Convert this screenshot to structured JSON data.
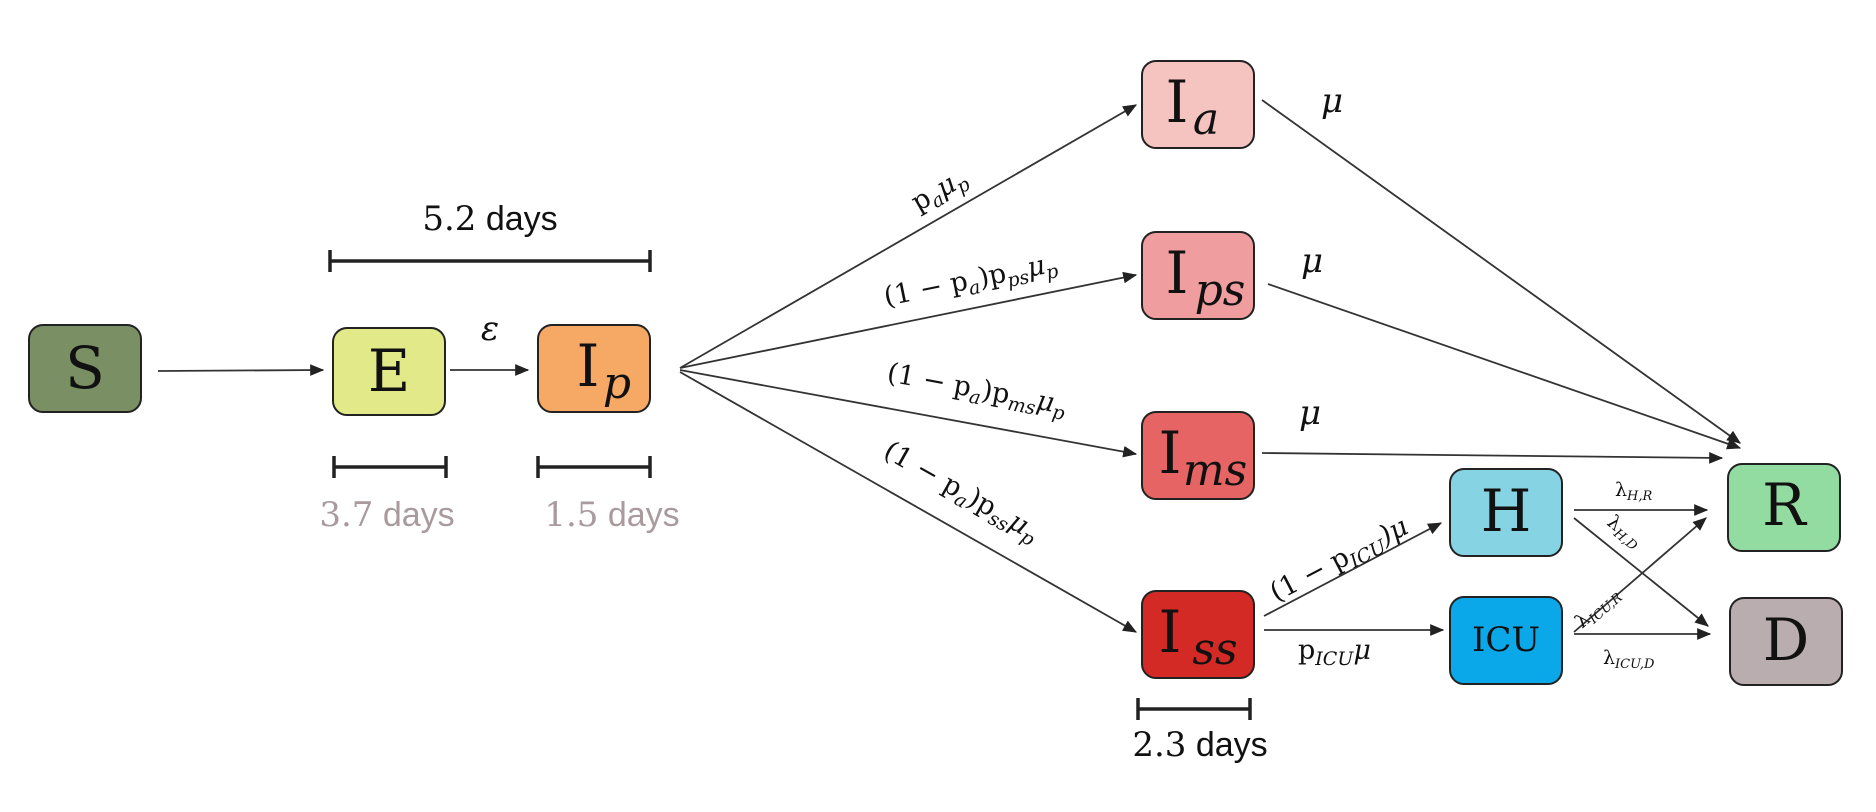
{
  "nodes": {
    "S": {
      "label": "S",
      "sub": "",
      "color": "#7a8f63"
    },
    "E": {
      "label": "E",
      "sub": "",
      "color": "#e2e989"
    },
    "Ip": {
      "label": "I",
      "sub": "p",
      "color": "#f5a965"
    },
    "Ia": {
      "label": "I",
      "sub": "a",
      "color": "#f5c3c0"
    },
    "Ips": {
      "label": "I",
      "sub": "ps",
      "color": "#ef9d9f"
    },
    "Ims": {
      "label": "I",
      "sub": "ms",
      "color": "#e66464"
    },
    "Iss": {
      "label": "I",
      "sub": "ss",
      "color": "#d42a25"
    },
    "H": {
      "label": "H",
      "sub": "",
      "color": "#86d3e4"
    },
    "ICU": {
      "label": "ICU",
      "sub": "",
      "color": "#0aa8e8"
    },
    "R": {
      "label": "R",
      "sub": "",
      "color": "#92dba1"
    },
    "D": {
      "label": "D",
      "sub": "",
      "color": "#b9adaf"
    }
  },
  "rates": {
    "epsilon": "ε",
    "pa_mu_p": {
      "p": "p",
      "a": "a",
      "mu": "μ",
      "p2": "p"
    },
    "ps": {
      "prefix": "(1 − p",
      "a": "a",
      "mid": ")p",
      "sub1": "ps",
      "mu": "μ",
      "sub2": "p"
    },
    "ms": {
      "prefix": "(1 − p",
      "a": "a",
      "mid": ")p",
      "sub1": "ms",
      "mu": "μ",
      "sub2": "p"
    },
    "ss": {
      "prefix": "(1 − p",
      "a": "a",
      "mid": ")p",
      "sub1": "ss",
      "mu": "μ",
      "sub2": "p"
    },
    "mu_a": "μ",
    "mu_ps": "μ",
    "mu_ms": "μ",
    "to_H": {
      "prefix": "(1 − p",
      "sub": "ICU",
      "suffix": ")μ"
    },
    "to_ICU": {
      "p": "p",
      "sub": "ICU",
      "mu": "μ"
    },
    "lambda_HR": {
      "l": "λ",
      "sub": "H,R"
    },
    "lambda_HD": {
      "l": "λ",
      "sub": "H,D"
    },
    "lambda_ICUR": {
      "l": "λ",
      "sub": "ICU,R"
    },
    "lambda_ICUD": {
      "l": "λ",
      "sub": "ICU,D"
    }
  },
  "durations": {
    "incubation": {
      "num": "5.2",
      "unit": " days"
    },
    "exposed": {
      "num": "3.7",
      "unit": " days"
    },
    "presymptomatic": {
      "num": "1.5",
      "unit": " days"
    },
    "severe": {
      "num": "2.3",
      "unit": " days"
    }
  },
  "colors": {
    "days_gray": "#a99a9e"
  }
}
